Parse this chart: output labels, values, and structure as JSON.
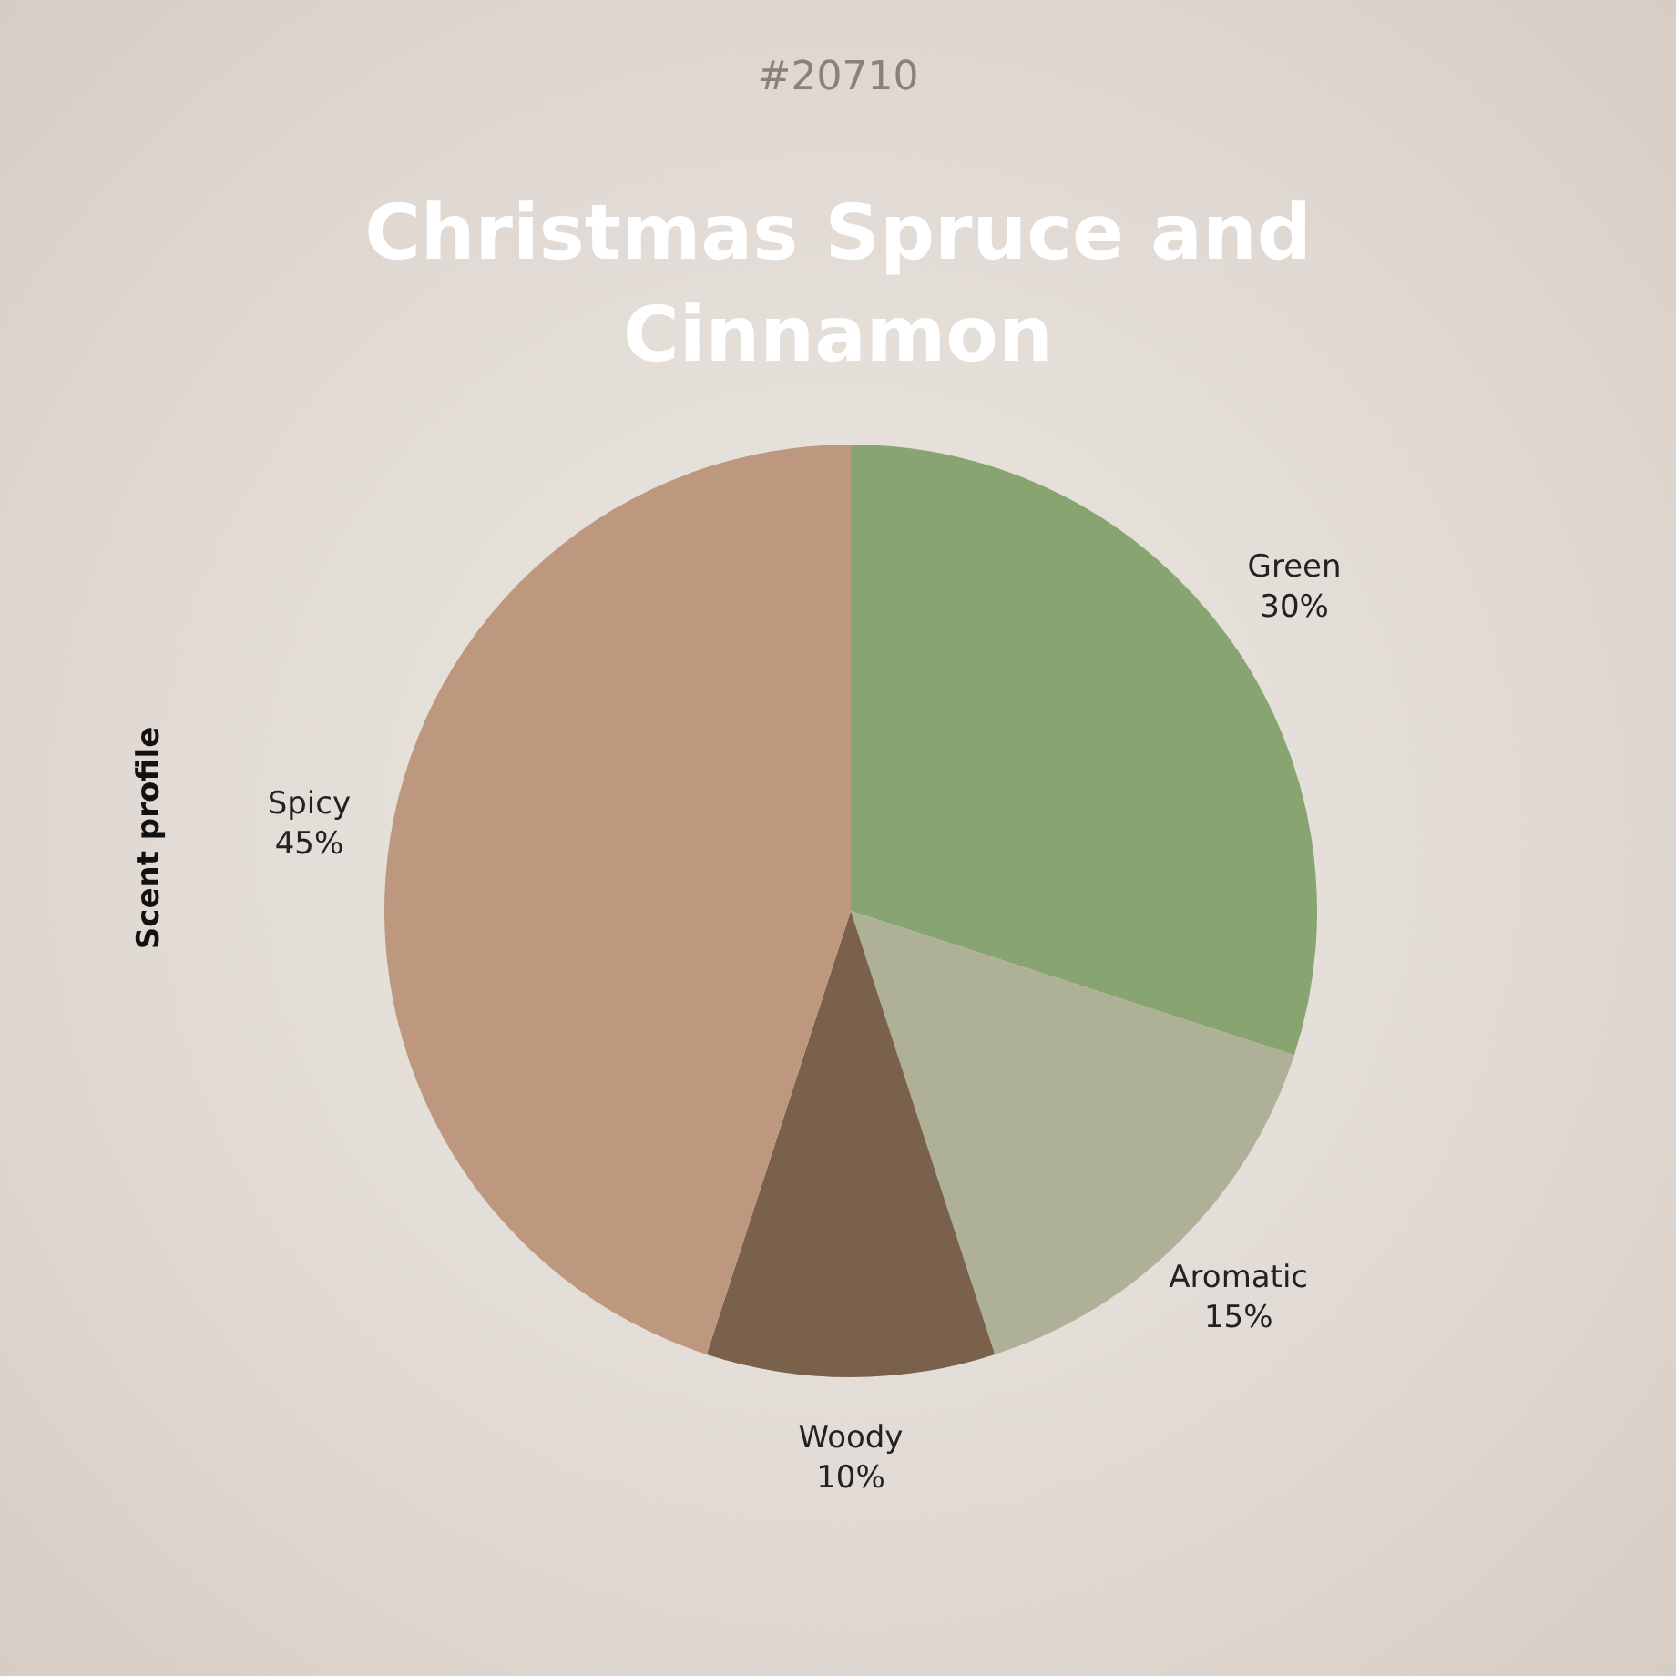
{
  "chart_data": {
    "type": "pie",
    "subtitle": "#20710",
    "title": "Christmas Spruce and Cinnamon",
    "ylabel": "Scent profile",
    "categories": [
      "Green",
      "Aromatic",
      "Woody",
      "Spicy"
    ],
    "values": [
      30,
      15,
      10,
      45
    ],
    "value_labels": [
      "30%",
      "15%",
      "10%",
      "45%"
    ],
    "colors": [
      "#87a471",
      "#aeb197",
      "#7a614b",
      "#bd987f"
    ],
    "legend": false
  }
}
